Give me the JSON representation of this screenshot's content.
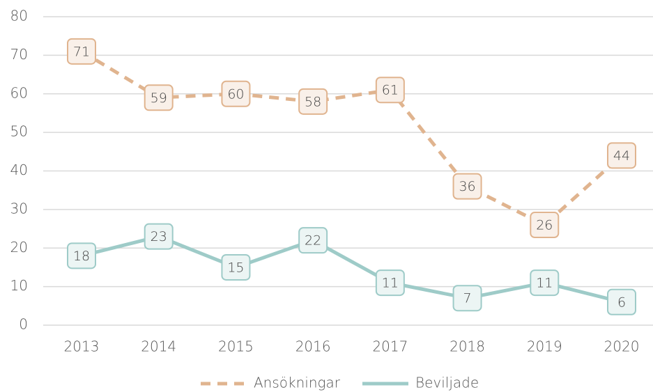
{
  "chart_data": {
    "type": "line",
    "categories": [
      "2013",
      "2014",
      "2015",
      "2016",
      "2017",
      "2018",
      "2019",
      "2020"
    ],
    "series": [
      {
        "name": "Ansökningar",
        "color": "#e0b48f",
        "style": "dashed",
        "values": [
          71,
          59,
          60,
          58,
          61,
          36,
          26,
          44
        ]
      },
      {
        "name": "Beviljade",
        "color": "#9ecbc8",
        "style": "solid",
        "values": [
          18,
          23,
          15,
          22,
          11,
          7,
          11,
          6
        ]
      }
    ],
    "ylim": [
      0,
      80
    ],
    "yticks": [
      0,
      10,
      20,
      30,
      40,
      50,
      60,
      70,
      80
    ],
    "grid": true,
    "legend": "bottom"
  }
}
